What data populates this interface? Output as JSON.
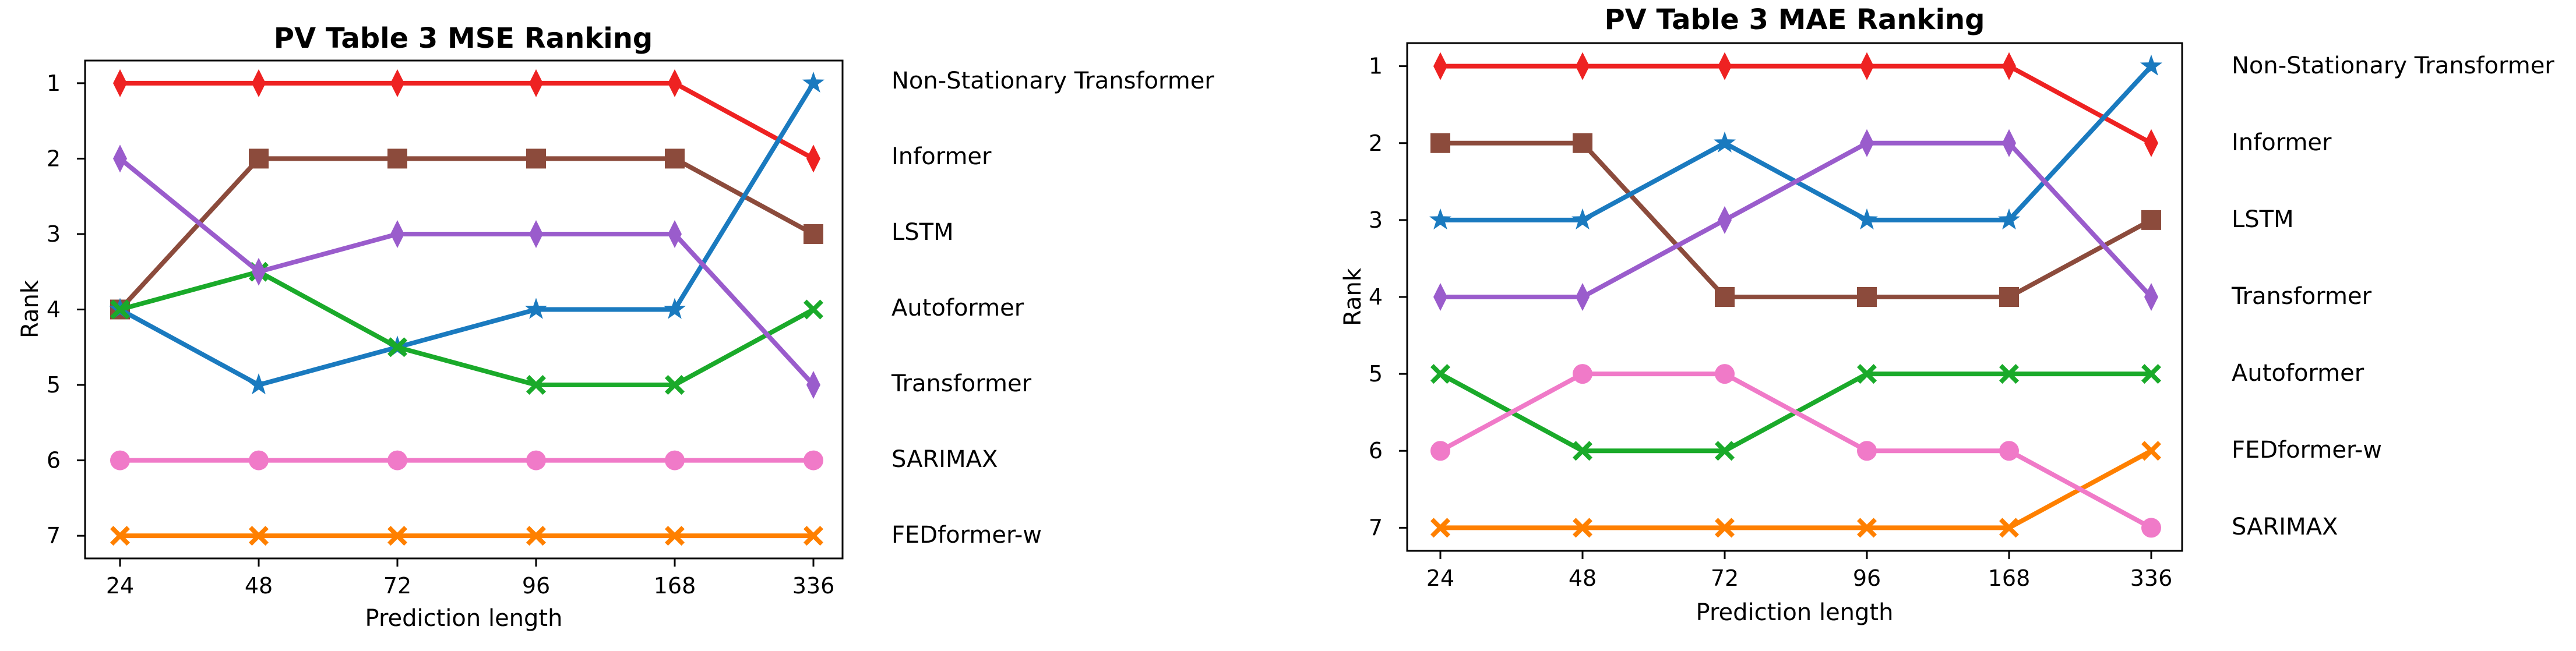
{
  "chart_data": [
    {
      "type": "line",
      "title": "PV Table 3 MSE Ranking",
      "xlabel": "Prediction length",
      "ylabel": "Rank",
      "categories": [
        "24",
        "48",
        "72",
        "96",
        "168",
        "336"
      ],
      "y_ticks": [
        "1",
        "2",
        "3",
        "4",
        "5",
        "6",
        "7"
      ],
      "ylim": [
        7.3,
        0.7
      ],
      "y_inverted": true,
      "grid": false,
      "legend_placement": "right-outside",
      "series": [
        {
          "name": "Non-Stationary Transformer",
          "values": [
            1,
            1,
            1,
            1,
            1,
            2
          ],
          "color": "#ee2222",
          "marker": "diamond"
        },
        {
          "name": "Informer",
          "values": [
            4,
            2,
            2,
            2,
            2,
            3
          ],
          "color": "#8c4b3c",
          "marker": "square"
        },
        {
          "name": "LSTM",
          "values": [
            4,
            5,
            4.5,
            4,
            4,
            1
          ],
          "color": "#1a7abf",
          "marker": "star"
        },
        {
          "name": "Autoformer",
          "values": [
            4,
            3.5,
            4.5,
            5,
            5,
            4
          ],
          "color": "#1aaa2a",
          "marker": "x"
        },
        {
          "name": "Transformer",
          "values": [
            2,
            3.5,
            3,
            3,
            3,
            5
          ],
          "color": "#9a5ccc",
          "marker": "diamond"
        },
        {
          "name": "SARIMAX",
          "values": [
            6,
            6,
            6,
            6,
            6,
            6
          ],
          "color": "#f07ac8",
          "marker": "circle"
        },
        {
          "name": "FEDformer-w",
          "values": [
            7,
            7,
            7,
            7,
            7,
            7
          ],
          "color": "#ff8000",
          "marker": "x"
        }
      ]
    },
    {
      "type": "line",
      "title": "PV Table 3 MAE Ranking",
      "xlabel": "Prediction length",
      "ylabel": "Rank",
      "categories": [
        "24",
        "48",
        "72",
        "96",
        "168",
        "336"
      ],
      "y_ticks": [
        "1",
        "2",
        "3",
        "4",
        "5",
        "6",
        "7"
      ],
      "ylim": [
        7.3,
        0.7
      ],
      "y_inverted": true,
      "grid": false,
      "legend_placement": "right-outside",
      "series": [
        {
          "name": "Non-Stationary Transformer",
          "values": [
            1,
            1,
            1,
            1,
            1,
            2
          ],
          "color": "#ee2222",
          "marker": "diamond"
        },
        {
          "name": "Informer",
          "values": [
            2,
            2,
            4,
            4,
            4,
            3
          ],
          "color": "#8c4b3c",
          "marker": "square"
        },
        {
          "name": "LSTM",
          "values": [
            3,
            3,
            2,
            3,
            3,
            1
          ],
          "color": "#1a7abf",
          "marker": "star"
        },
        {
          "name": "Transformer",
          "values": [
            4,
            4,
            3,
            2,
            2,
            4
          ],
          "color": "#9a5ccc",
          "marker": "diamond"
        },
        {
          "name": "Autoformer",
          "values": [
            5,
            6,
            6,
            5,
            5,
            5
          ],
          "color": "#1aaa2a",
          "marker": "x"
        },
        {
          "name": "FEDformer-w",
          "values": [
            7,
            7,
            7,
            7,
            7,
            6
          ],
          "color": "#ff8000",
          "marker": "x"
        },
        {
          "name": "SARIMAX",
          "values": [
            6,
            5,
            5,
            6,
            6,
            7
          ],
          "color": "#f07ac8",
          "marker": "circle"
        }
      ]
    }
  ]
}
